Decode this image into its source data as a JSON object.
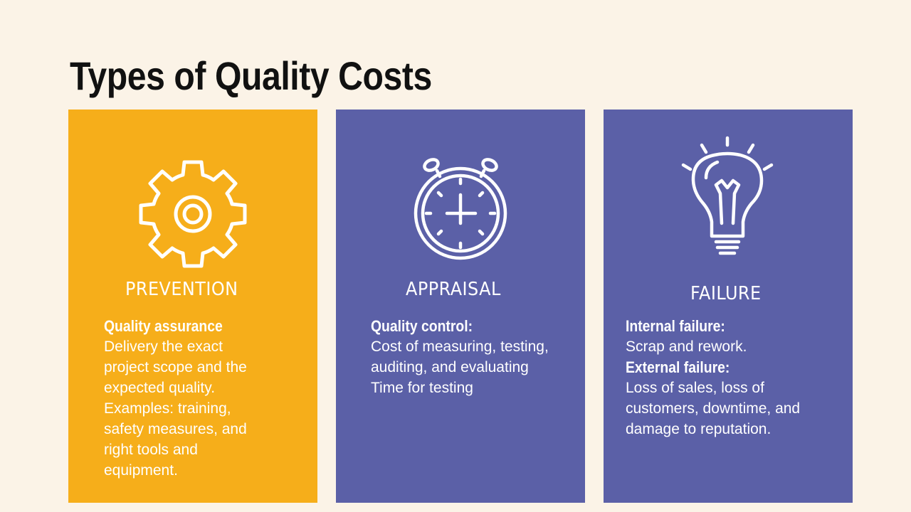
{
  "title": "Types of Quality Costs",
  "colors": {
    "background": "#fbf3e7",
    "prevention": "#f6ae1a",
    "appraisal": "#5b60a7",
    "failure": "#5b60a7",
    "text": "#ffffff",
    "title": "#111111"
  },
  "cards": {
    "prevention": {
      "icon": "gear-icon",
      "title": "PREVENTION",
      "heading": "Quality assurance",
      "lines": [
        "Delivery the exact",
        "project scope and the",
        "expected quality.",
        "Examples: training,",
        "safety measures, and",
        "right tools and",
        "equipment."
      ]
    },
    "appraisal": {
      "icon": "alarm-clock-icon",
      "title": "APPRAISAL",
      "heading": "Quality control:",
      "lines": [
        "Cost of measuring, testing,",
        "auditing, and evaluating",
        "Time for testing"
      ]
    },
    "failure": {
      "icon": "lightbulb-icon",
      "title": "FAILURE",
      "heading1": "Internal failure:",
      "lines1": [
        "Scrap  and rework."
      ],
      "heading2": "External failure:",
      "lines2": [
        "Loss of sales, loss of",
        "customers, downtime, and",
        "damage to reputation."
      ]
    }
  }
}
